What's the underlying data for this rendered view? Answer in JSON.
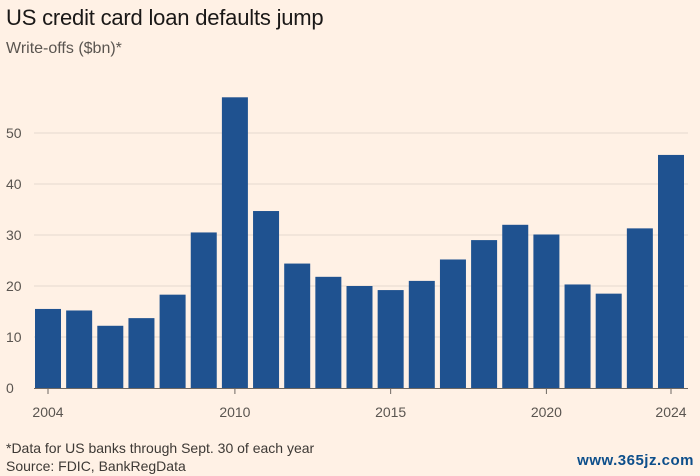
{
  "chart_data": {
    "type": "bar",
    "title": "US credit card loan defaults jump",
    "subtitle": "Write-offs ($bn)*",
    "x": [
      2004,
      2005,
      2006,
      2007,
      2008,
      2009,
      2010,
      2011,
      2012,
      2013,
      2014,
      2015,
      2016,
      2017,
      2018,
      2019,
      2020,
      2021,
      2022,
      2023,
      2024
    ],
    "values": [
      15.5,
      15.2,
      12.2,
      13.7,
      18.3,
      30.5,
      57.0,
      34.7,
      24.4,
      21.8,
      20.0,
      19.2,
      21.0,
      25.2,
      29.0,
      32.0,
      30.1,
      20.3,
      18.5,
      31.3,
      45.7
    ],
    "xticks": [
      2004,
      2010,
      2015,
      2020,
      2024
    ],
    "yticks": [
      0,
      10,
      20,
      30,
      40,
      50
    ],
    "ylim": [
      0,
      62
    ],
    "xlabel": "",
    "ylabel": "",
    "grid": "horizontal",
    "bar_color": "#1f5290",
    "footnote": "*Data for US banks through Sept. 30 of each year",
    "source": "Source: FDIC, BankRegData"
  },
  "watermark": "www.365jz.com"
}
